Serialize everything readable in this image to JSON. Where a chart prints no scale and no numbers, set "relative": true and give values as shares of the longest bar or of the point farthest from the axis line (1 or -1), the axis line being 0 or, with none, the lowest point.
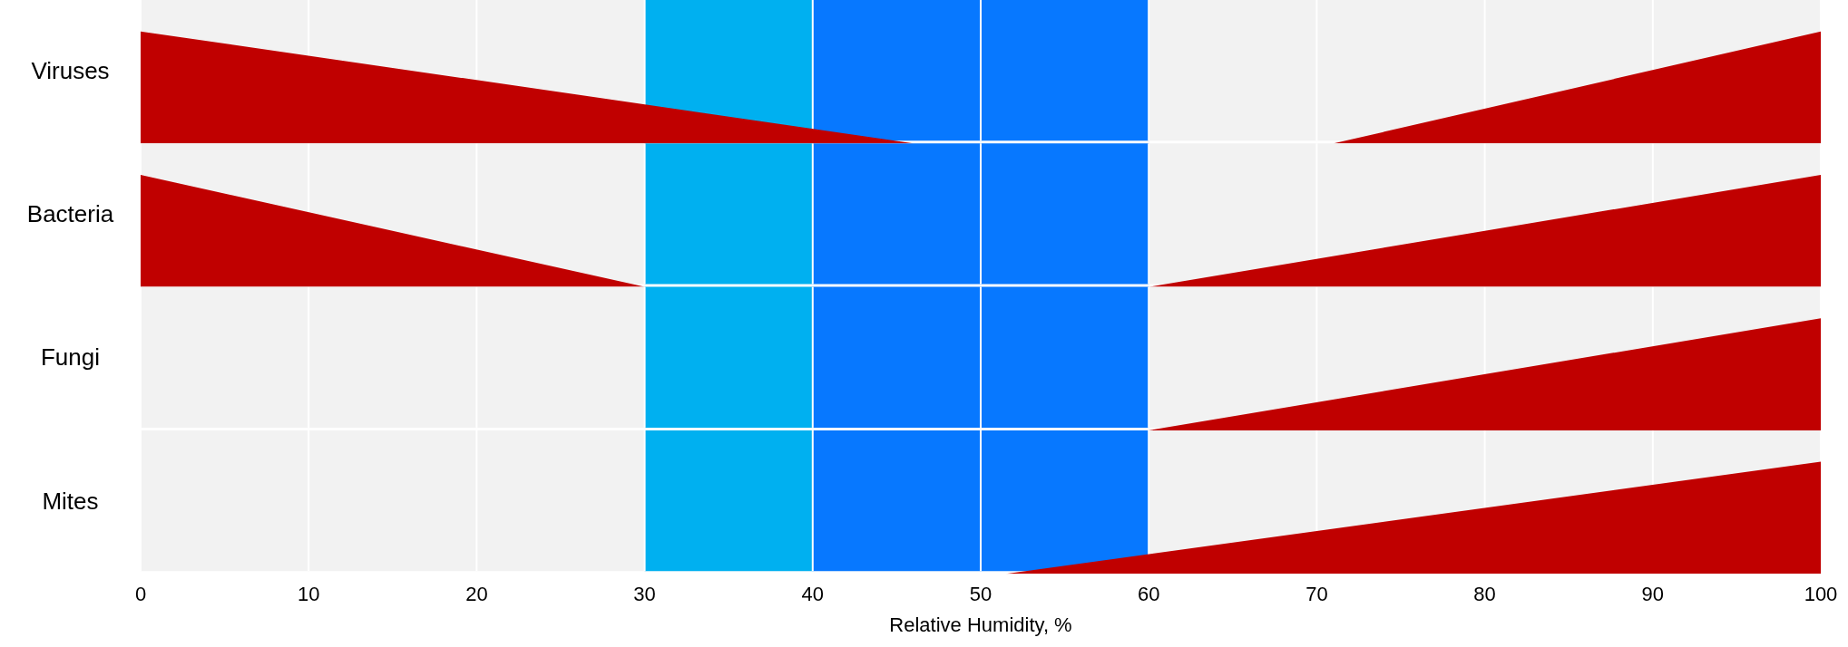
{
  "chart_data": [
    {
      "type": "area",
      "ylabel": "Viruses",
      "relative": true,
      "x": [
        0,
        46,
        71,
        100
      ],
      "series": [
        {
          "color": "#c00000",
          "values": [
            1,
            0,
            0,
            1
          ]
        }
      ],
      "xlim": [
        0,
        100
      ],
      "xticks": [
        0,
        10,
        20,
        30,
        40,
        50,
        60,
        70,
        80,
        90,
        100
      ],
      "grid": "x",
      "tick_labels": false,
      "legend": false,
      "bands": [
        {
          "axis": "x",
          "from": 30,
          "to": 40,
          "color": "#00b0f0"
        },
        {
          "axis": "x",
          "from": 40,
          "to": 60,
          "color": "#0778ff"
        }
      ]
    },
    {
      "type": "area",
      "ylabel": "Bacteria",
      "relative": true,
      "x": [
        0,
        30,
        60,
        100
      ],
      "series": [
        {
          "color": "#c00000",
          "values": [
            1,
            0,
            0,
            1
          ]
        }
      ],
      "xlim": [
        0,
        100
      ],
      "xticks": [
        0,
        10,
        20,
        30,
        40,
        50,
        60,
        70,
        80,
        90,
        100
      ],
      "grid": "x",
      "tick_labels": false,
      "legend": false,
      "bands": [
        {
          "axis": "x",
          "from": 30,
          "to": 40,
          "color": "#00b0f0"
        },
        {
          "axis": "x",
          "from": 40,
          "to": 60,
          "color": "#0778ff"
        }
      ]
    },
    {
      "type": "area",
      "ylabel": "Fungi",
      "relative": true,
      "x": [
        60,
        100
      ],
      "series": [
        {
          "color": "#c00000",
          "values": [
            0,
            1
          ]
        }
      ],
      "xlim": [
        0,
        100
      ],
      "xticks": [
        0,
        10,
        20,
        30,
        40,
        50,
        60,
        70,
        80,
        90,
        100
      ],
      "grid": "x",
      "tick_labels": false,
      "legend": false,
      "bands": [
        {
          "axis": "x",
          "from": 30,
          "to": 40,
          "color": "#00b0f0"
        },
        {
          "axis": "x",
          "from": 40,
          "to": 60,
          "color": "#0778ff"
        }
      ]
    },
    {
      "type": "area",
      "ylabel": "Mites",
      "xlabel": "Relative Humidity, %",
      "relative": true,
      "x": [
        51.5,
        100
      ],
      "series": [
        {
          "color": "#c00000",
          "values": [
            0,
            1
          ]
        }
      ],
      "xlim": [
        0,
        100
      ],
      "xticks": [
        0,
        10,
        20,
        30,
        40,
        50,
        60,
        70,
        80,
        90,
        100
      ],
      "grid": "x",
      "tick_labels": "x",
      "legend": false,
      "bands": [
        {
          "axis": "x",
          "from": 30,
          "to": 40,
          "color": "#00b0f0"
        },
        {
          "axis": "x",
          "from": 40,
          "to": 60,
          "color": "#0778ff"
        }
      ]
    }
  ]
}
